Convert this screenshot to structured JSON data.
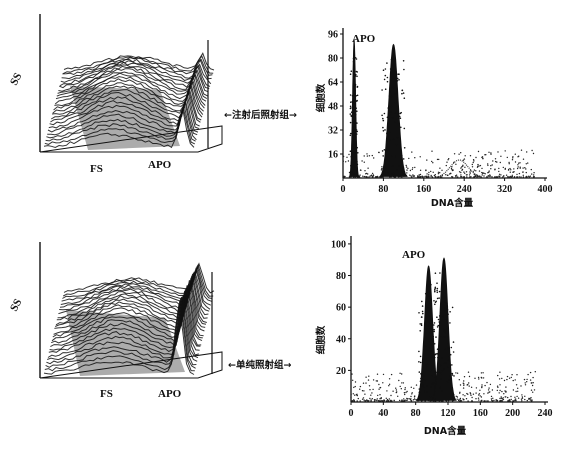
{
  "chart_data": [
    {
      "type": "histogram-3d",
      "panel": "top-left",
      "axis_labels": {
        "ss": "SS",
        "fs": "FS",
        "apo": "APO"
      }
    },
    {
      "type": "histogram",
      "panel": "top-right",
      "group_label": "←注射后照射组→",
      "xlabel": "DNA含量",
      "ylabel": "细胞数",
      "annotation": "APO",
      "xticks": [
        0,
        80,
        160,
        240,
        320,
        400
      ],
      "yticks": [
        16,
        32,
        48,
        64,
        80,
        96
      ],
      "xlim": [
        0,
        400
      ],
      "ylim": [
        0,
        100
      ],
      "peaks": [
        {
          "x": 22,
          "height": 92,
          "width": 3
        },
        {
          "x": 100,
          "height": 89,
          "width": 9
        }
      ],
      "minor_peak": {
        "x": 230,
        "height": 12
      }
    },
    {
      "type": "histogram-3d",
      "panel": "bottom-left",
      "axis_labels": {
        "ss": "SS",
        "fs": "FS",
        "apo": "APO"
      }
    },
    {
      "type": "histogram",
      "panel": "bottom-right",
      "group_label": "←单纯照射组→",
      "xlabel": "DNA含量",
      "ylabel": "细胞数",
      "annotation": "APO",
      "xticks": [
        0,
        40,
        80,
        120,
        160,
        200,
        240
      ],
      "yticks": [
        20,
        40,
        60,
        80,
        100
      ],
      "xlim": [
        0,
        240
      ],
      "ylim": [
        0,
        105
      ],
      "peaks": [
        {
          "x": 96,
          "height": 86,
          "width": 5
        },
        {
          "x": 115,
          "height": 91,
          "width": 5
        }
      ]
    }
  ]
}
